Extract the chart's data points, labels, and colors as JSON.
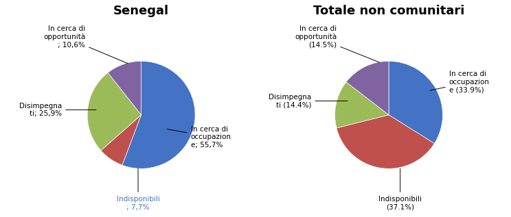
{
  "chart1_title": "Senegal",
  "chart2_title": "Totale non comunitari",
  "chart1_values": [
    55.7,
    7.7,
    25.9,
    10.6
  ],
  "chart2_values": [
    33.9,
    37.1,
    14.4,
    14.5
  ],
  "colors": [
    "#4472C4",
    "#C0504D",
    "#9BBB59",
    "#8064A2"
  ],
  "background_color": "#FFFFFF",
  "title_fontsize": 13,
  "label_fontsize": 7.5
}
